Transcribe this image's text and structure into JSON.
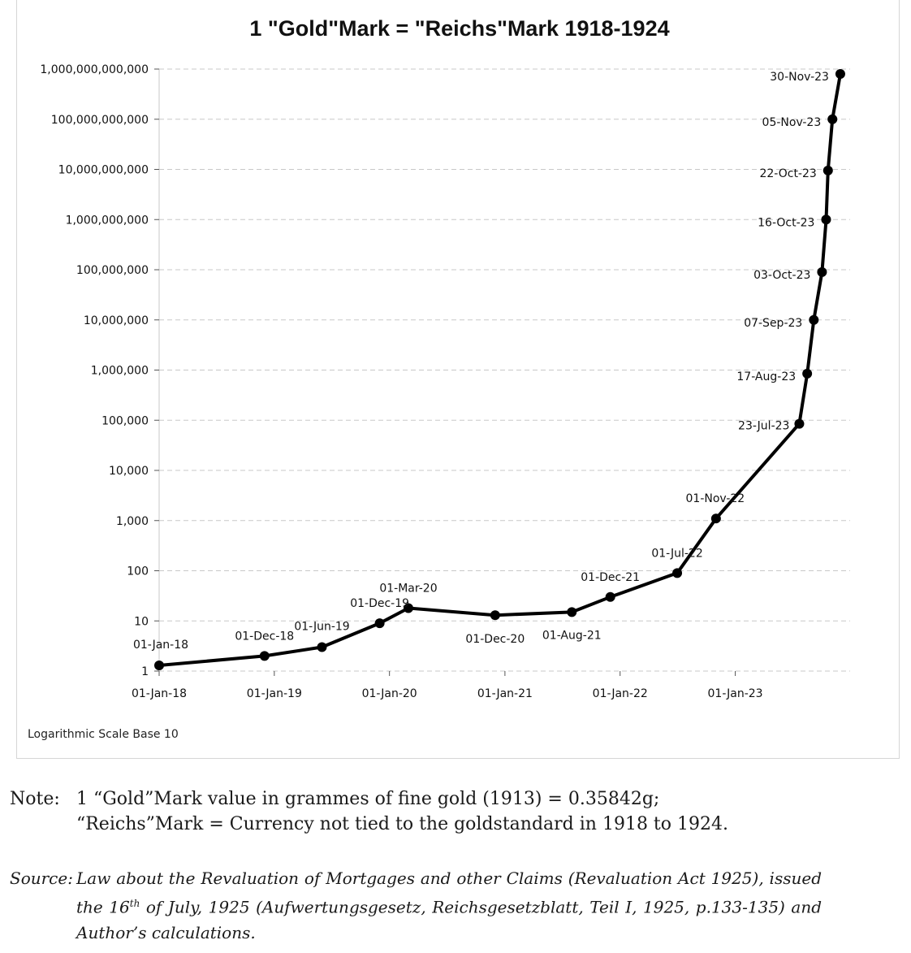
{
  "chart_data": {
    "type": "line",
    "title": "1 \"Gold\"Mark = \"Reichs\"Mark 1918-1924",
    "scale_note": "Logarithmic Scale Base 10",
    "y_scale": "log10",
    "ylim": [
      1,
      1000000000000
    ],
    "y_ticks": [
      "1",
      "10",
      "100",
      "1,000",
      "10,000",
      "100,000",
      "1,000,000",
      "10,000,000",
      "100,000,000",
      "1,000,000,000",
      "10,000,000,000",
      "100,000,000,000",
      "1,000,000,000,000"
    ],
    "x_ticks": [
      "01-Jan-18",
      "01-Jan-19",
      "01-Jan-20",
      "01-Jan-21",
      "01-Jan-22",
      "01-Jan-23"
    ],
    "x_tick_dates": [
      "1918-01-01",
      "1919-01-01",
      "1920-01-01",
      "1921-01-01",
      "1922-01-01",
      "1923-01-01"
    ],
    "xlim": [
      "1918-01-01",
      "1923-12-31"
    ],
    "grid": true,
    "points": [
      {
        "label": "01-Jan-18",
        "date": "1918-01-01",
        "value": 1.3
      },
      {
        "label": "01-Dec-18",
        "date": "1918-12-01",
        "value": 2
      },
      {
        "label": "01-Jun-19",
        "date": "1919-06-01",
        "value": 3
      },
      {
        "label": "01-Dec-19",
        "date": "1919-12-01",
        "value": 9
      },
      {
        "label": "01-Mar-20",
        "date": "1920-03-01",
        "value": 18
      },
      {
        "label": "01-Dec-20",
        "date": "1920-12-01",
        "value": 13
      },
      {
        "label": "01-Aug-21",
        "date": "1921-08-01",
        "value": 15
      },
      {
        "label": "01-Dec-21",
        "date": "1921-12-01",
        "value": 30
      },
      {
        "label": "01-Jul-22",
        "date": "1922-07-01",
        "value": 90
      },
      {
        "label": "01-Nov-22",
        "date": "1922-11-01",
        "value": 1100
      },
      {
        "label": "23-Jul-23",
        "date": "1923-07-23",
        "value": 85000
      },
      {
        "label": "17-Aug-23",
        "date": "1923-08-17",
        "value": 850000
      },
      {
        "label": "07-Sep-23",
        "date": "1923-09-07",
        "value": 10000000
      },
      {
        "label": "03-Oct-23",
        "date": "1923-10-03",
        "value": 90000000
      },
      {
        "label": "16-Oct-23",
        "date": "1923-10-16",
        "value": 1000000000
      },
      {
        "label": "22-Oct-23",
        "date": "1923-10-22",
        "value": 9500000000
      },
      {
        "label": "05-Nov-23",
        "date": "1923-11-05",
        "value": 100000000000
      },
      {
        "label": "30-Nov-23",
        "date": "1923-11-30",
        "value": 800000000000
      }
    ],
    "colors": {
      "line": "#000000",
      "grid": "#c8c8c8"
    }
  },
  "note": {
    "label": "Note:",
    "line1": "1 “Gold”Mark value in grammes of fine gold (1913) = 0.35842g;",
    "line2": "“Reichs”Mark = Currency not tied to the goldstandard in 1918 to 1924."
  },
  "source": {
    "label": "Source:",
    "text_a": "Law about the Revaluation of Mortgages and other Claims (Revaluation Act 1925), issued the 16",
    "sup": "th",
    "text_b": " of July, 1925 (Aufwertungsgesetz, Reichsgesetzblatt, Teil I, 1925, p.133-135) and Author’s calculations."
  }
}
